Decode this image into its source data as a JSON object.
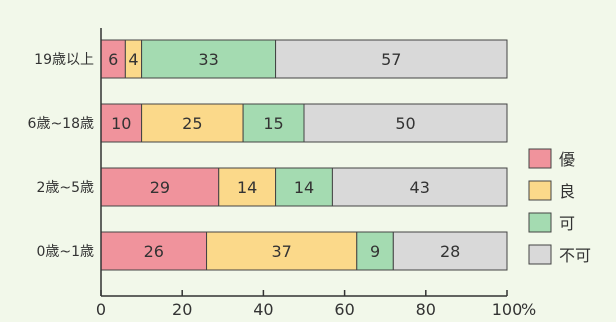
{
  "chart_data": {
    "type": "bar",
    "orientation": "horizontal",
    "stacked": true,
    "categories": [
      "19歳以上",
      "6歳~18歳",
      "2歳~5歳",
      "0歳~1歳"
    ],
    "series": [
      {
        "name": "優",
        "color": "#f0939c",
        "values": [
          6,
          10,
          29,
          26
        ]
      },
      {
        "name": "良",
        "color": "#fbd98a",
        "values": [
          4,
          25,
          14,
          37
        ]
      },
      {
        "name": "可",
        "color": "#a4dbb1",
        "values": [
          33,
          15,
          14,
          9
        ]
      },
      {
        "name": "不可",
        "color": "#d9d9d9",
        "values": [
          57,
          50,
          43,
          28
        ]
      }
    ],
    "xlim": [
      0,
      100
    ],
    "xticks": [
      0,
      20,
      40,
      60,
      80,
      100
    ],
    "xunit": "%",
    "title": "",
    "xlabel": "",
    "ylabel": "",
    "grid": false,
    "legend": "right"
  },
  "colors": {
    "background": "#f2f8ea",
    "axis": "#333333",
    "bar_border": "#444444"
  }
}
